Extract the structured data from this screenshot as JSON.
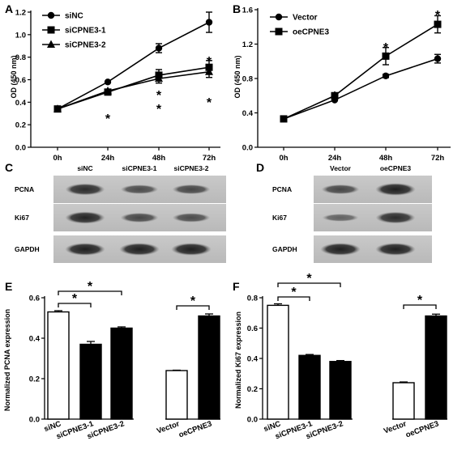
{
  "panels": [
    {
      "label": "A"
    },
    {
      "label": "B"
    },
    {
      "label": "C"
    },
    {
      "label": "D"
    },
    {
      "label": "E"
    },
    {
      "label": "F"
    }
  ],
  "chart_data": [
    {
      "id": "A",
      "type": "line",
      "categories": [
        "0h",
        "24h",
        "48h",
        "72h"
      ],
      "ylabel": "OD (450 nm)",
      "ylim": [
        0.0,
        1.2
      ],
      "yticks": [
        "0.0",
        "0.2",
        "0.4",
        "0.6",
        "0.8",
        "1.0",
        "1.2"
      ],
      "legend_position": "top-left",
      "series": [
        {
          "name": "siNC",
          "marker": "circle",
          "values": [
            0.34,
            0.58,
            0.88,
            1.11
          ],
          "errors": [
            0.01,
            0.01,
            0.04,
            0.09
          ]
        },
        {
          "name": "siCPNE3-1",
          "marker": "square",
          "values": [
            0.34,
            0.49,
            0.64,
            0.71
          ],
          "errors": [
            0.01,
            0.01,
            0.05,
            0.06
          ]
        },
        {
          "name": "siCPNE3-2",
          "marker": "triangle",
          "values": [
            0.34,
            0.5,
            0.61,
            0.67
          ],
          "errors": [
            0.01,
            0.01,
            0.04,
            0.05
          ]
        }
      ],
      "significance": [
        "",
        "*",
        "*",
        "*"
      ]
    },
    {
      "id": "B",
      "type": "line",
      "categories": [
        "0h",
        "24h",
        "48h",
        "72h"
      ],
      "ylabel": "OD (450 nm)",
      "ylim": [
        0.0,
        1.6
      ],
      "yticks": [
        "0.0",
        "0.4",
        "0.8",
        "1.2",
        "1.6"
      ],
      "legend_position": "top-left",
      "series": [
        {
          "name": "Vector",
          "marker": "circle",
          "values": [
            0.33,
            0.55,
            0.83,
            1.03
          ],
          "errors": [
            0.01,
            0.01,
            0.02,
            0.05
          ]
        },
        {
          "name": "oeCPNE3",
          "marker": "square",
          "values": [
            0.33,
            0.6,
            1.06,
            1.43
          ],
          "errors": [
            0.01,
            0.02,
            0.1,
            0.1
          ]
        }
      ],
      "significance": [
        "",
        "*",
        "*",
        "*"
      ]
    },
    {
      "id": "E",
      "type": "bar",
      "categories": [
        "siNC",
        "siCPNE3-1",
        "siCPNE3-2",
        "Vector",
        "oeCPNE3"
      ],
      "ylabel": "Normalized PCNA expression",
      "ylim": [
        0.0,
        0.6
      ],
      "yticks": [
        "0.0",
        "0.2",
        "0.4",
        "0.6"
      ],
      "values": [
        0.53,
        0.37,
        0.45,
        0.24,
        0.51
      ],
      "errors": [
        0.006,
        0.014,
        0.006,
        0.002,
        0.01
      ],
      "fill": [
        "white",
        "black",
        "black",
        "white",
        "black"
      ],
      "brackets": [
        {
          "from": 0,
          "to": 1,
          "label": "*"
        },
        {
          "from": 0,
          "to": 2,
          "label": "*"
        },
        {
          "from": 3,
          "to": 4,
          "label": "*"
        }
      ]
    },
    {
      "id": "F",
      "type": "bar",
      "categories": [
        "siNC",
        "siCPNE3-1",
        "siCPNE3-2",
        "Vector",
        "oeCPNE3"
      ],
      "ylabel": "Normalized Ki67 expression",
      "ylim": [
        0.0,
        0.8
      ],
      "yticks": [
        "0.0",
        "0.2",
        "0.4",
        "0.6",
        "0.8"
      ],
      "values": [
        0.75,
        0.42,
        0.38,
        0.24,
        0.68
      ],
      "errors": [
        0.01,
        0.006,
        0.006,
        0.005,
        0.012
      ],
      "fill": [
        "white",
        "black",
        "black",
        "white",
        "black"
      ],
      "brackets": [
        {
          "from": 0,
          "to": 1,
          "label": "*"
        },
        {
          "from": 0,
          "to": 2,
          "label": "*"
        },
        {
          "from": 3,
          "to": 4,
          "label": "*"
        }
      ]
    }
  ],
  "blots": {
    "C": {
      "lanes": [
        "siNC",
        "siCPNE3-1",
        "siCPNE3-2"
      ],
      "rows": [
        {
          "protein": "PCNA",
          "intensities": [
            0.85,
            0.55,
            0.6
          ]
        },
        {
          "protein": "Ki67",
          "intensities": [
            0.9,
            0.6,
            0.55
          ]
        },
        {
          "protein": "GAPDH",
          "intensities": [
            0.95,
            0.95,
            0.95
          ]
        }
      ]
    },
    "D": {
      "lanes": [
        "Vector",
        "oeCPNE3"
      ],
      "rows": [
        {
          "protein": "PCNA",
          "intensities": [
            0.6,
            0.95
          ]
        },
        {
          "protein": "Ki67",
          "intensities": [
            0.35,
            0.85
          ]
        },
        {
          "protein": "GAPDH",
          "intensities": [
            0.95,
            0.95
          ]
        }
      ]
    }
  }
}
